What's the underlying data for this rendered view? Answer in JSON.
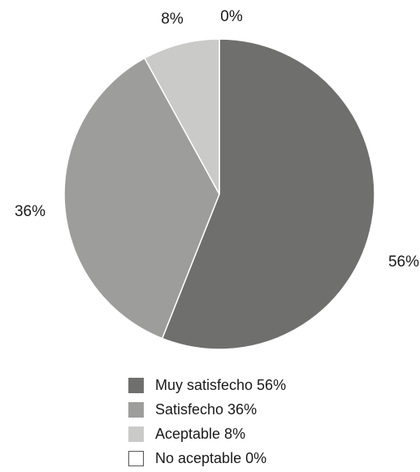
{
  "chart_data": {
    "type": "pie",
    "title": "",
    "slices": [
      {
        "label": "Muy satisfecho",
        "value": 56,
        "value_label": "56%",
        "legend_label": "Muy satisfecho 56%",
        "color": "#6f6f6d"
      },
      {
        "label": "Satisfecho",
        "value": 36,
        "value_label": "36%",
        "legend_label": "Satisfecho 36%",
        "color": "#9d9d9b"
      },
      {
        "label": "Aceptable",
        "value": 8,
        "value_label": "8%",
        "legend_label": "Aceptable 8%",
        "color": "#cacac8"
      },
      {
        "label": "No aceptable",
        "value": 0,
        "value_label": "0%",
        "legend_label": "No aceptable 0%",
        "color": "#ffffff"
      }
    ],
    "legend_position": "bottom"
  }
}
